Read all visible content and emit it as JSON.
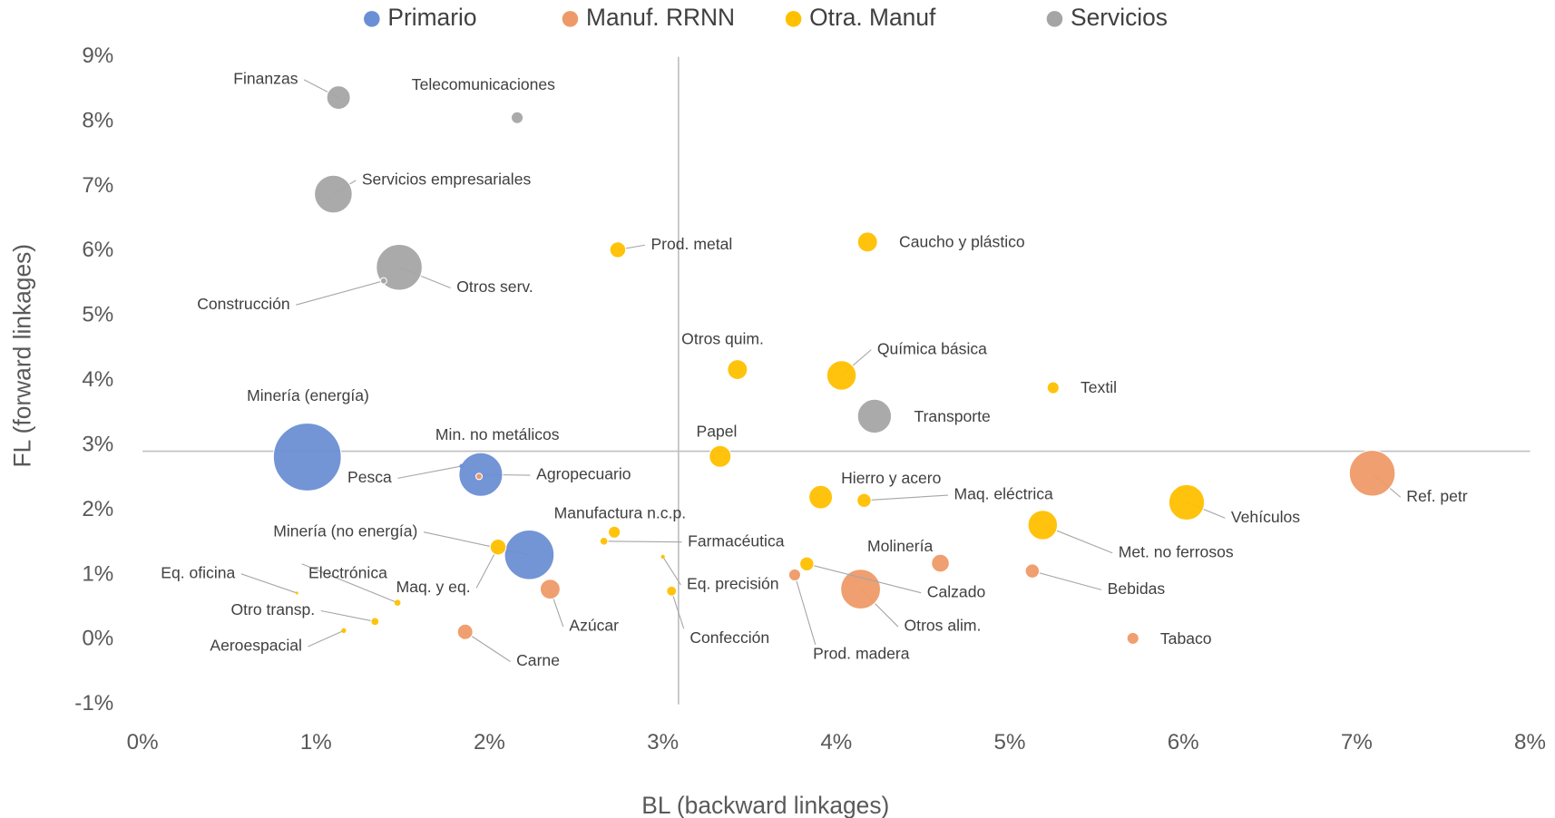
{
  "chart_data": {
    "type": "bubble",
    "x_label": "BL (backward linkages)",
    "y_label": "FL (forward linkages)",
    "xlim": [
      0,
      8
    ],
    "ylim": [
      -1,
      9
    ],
    "xticks": [
      {
        "value": 0,
        "label": "0%"
      },
      {
        "value": 1,
        "label": "1%"
      },
      {
        "value": 2,
        "label": "2%"
      },
      {
        "value": 3,
        "label": "3%"
      },
      {
        "value": 4,
        "label": "4%"
      },
      {
        "value": 5,
        "label": "5%"
      },
      {
        "value": 6,
        "label": "6%"
      },
      {
        "value": 7,
        "label": "7%"
      },
      {
        "value": 8,
        "label": "8%"
      }
    ],
    "yticks": [
      {
        "value": -1,
        "label": "-1%"
      },
      {
        "value": 0,
        "label": "0%"
      },
      {
        "value": 1,
        "label": "1%"
      },
      {
        "value": 2,
        "label": "2%"
      },
      {
        "value": 3,
        "label": "3%"
      },
      {
        "value": 4,
        "label": "4%"
      },
      {
        "value": 5,
        "label": "5%"
      },
      {
        "value": 6,
        "label": "6%"
      },
      {
        "value": 7,
        "label": "7%"
      },
      {
        "value": 8,
        "label": "8%"
      },
      {
        "value": 9,
        "label": "9%"
      }
    ],
    "x_reference_line": 3.09,
    "y_reference_line": 2.91,
    "legend": "top",
    "series": [
      {
        "name": "Primario",
        "color": "#6b8fd4",
        "labels": [
          "Minería (energía)",
          "Agropecuario",
          "Minería (no energía)",
          "Pesca"
        ],
        "x": [
          0.95,
          1.95,
          2.23,
          1.84
        ],
        "values": [
          2.82,
          2.55,
          1.31,
          2.68
        ],
        "sizes": [
          116,
          48,
          62,
          0.5
        ]
      },
      {
        "name": "Manuf. RRNN",
        "color": "#ee9a68",
        "labels": [
          "Ref. petr",
          "Otros alim.",
          "Molinería",
          "Bebidas",
          "Tabaco",
          "Azúcar",
          "Carne",
          "Prod. madera",
          "Min. no metálicos"
        ],
        "x": [
          7.09,
          4.14,
          4.6,
          5.13,
          5.71,
          2.35,
          1.86,
          3.76,
          1.94
        ],
        "values": [
          2.57,
          0.78,
          1.18,
          1.06,
          0.02,
          0.78,
          0.12,
          1.0,
          2.52
        ],
        "sizes": [
          53,
          40,
          8,
          5,
          3.6,
          10,
          6,
          3.6,
          1
        ]
      },
      {
        "name": "Otra. Manuf",
        "color": "#ffc000",
        "labels": [
          "Vehículos",
          "Met. no ferrosos",
          "Textil",
          "Química básica",
          "Caucho y plástico",
          "Otros quim.",
          "Prod. metal",
          "Papel",
          "Hierro y acero",
          "Maq. eléctrica",
          "Manufactura n.c.p.",
          "Farmacéutica",
          "Maq. y eq.",
          "Calzado",
          "Eq. precisión",
          "Confección",
          "Eq. oficina",
          "Electrónica",
          "Otro transp.",
          "Aeroespacial"
        ],
        "x": [
          6.02,
          5.19,
          5.25,
          4.03,
          4.18,
          3.43,
          2.74,
          3.33,
          3.91,
          4.16,
          2.72,
          2.66,
          2.05,
          3.83,
          3.0,
          3.05,
          0.89,
          1.47,
          1.34,
          1.16
        ],
        "values": [
          2.12,
          1.77,
          3.89,
          4.08,
          6.14,
          4.17,
          6.02,
          2.83,
          2.2,
          2.15,
          1.66,
          1.52,
          1.43,
          1.17,
          1.28,
          0.75,
          0.72,
          0.57,
          0.28,
          0.14
        ],
        "sizes": [
          32,
          22,
          3.6,
          22,
          10,
          10,
          6.4,
          12,
          14,
          5,
          3.6,
          1.6,
          6.4,
          5,
          0.4,
          2.5,
          0.2,
          0.9,
          1.6,
          0.6
        ]
      },
      {
        "name": "Servicios",
        "color": "#a5a5a5",
        "labels": [
          "Finanzas",
          "Telecomunicaciones",
          "Servicios empresariales",
          "Otros serv.",
          "Construcción",
          "Transporte"
        ],
        "x": [
          1.13,
          2.16,
          1.1,
          1.48,
          1.39,
          4.22
        ],
        "values": [
          8.37,
          8.06,
          6.88,
          5.75,
          5.54,
          3.45
        ],
        "sizes": [
          14,
          3.6,
          36,
          53,
          1,
          29
        ]
      }
    ]
  }
}
